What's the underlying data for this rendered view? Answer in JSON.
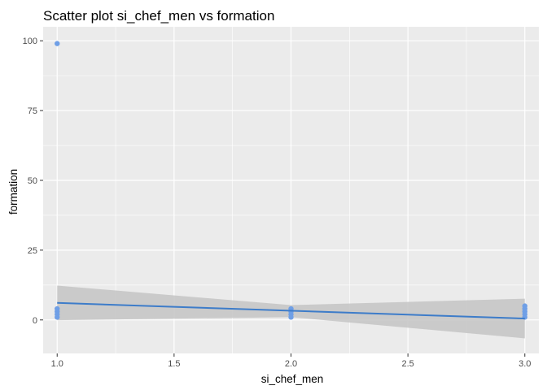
{
  "chart_data": {
    "type": "scatter",
    "title": "Scatter plot si_chef_men vs formation",
    "xlabel": "si_chef_men",
    "ylabel": "formation",
    "xlim": [
      0.94,
      3.06
    ],
    "ylim": [
      -12,
      105
    ],
    "xticks": [
      1.0,
      1.5,
      2.0,
      2.5,
      3.0
    ],
    "xtick_labels": [
      "1.0",
      "1.5",
      "2.0",
      "2.5",
      "3.0"
    ],
    "yticks": [
      0,
      25,
      50,
      75,
      100
    ],
    "ytick_labels": [
      "0",
      "25",
      "50",
      "75",
      "100"
    ],
    "grid": true,
    "points": [
      {
        "x": 1,
        "y": 99
      },
      {
        "x": 1,
        "y": 4
      },
      {
        "x": 1,
        "y": 3
      },
      {
        "x": 1,
        "y": 2
      },
      {
        "x": 1,
        "y": 1
      },
      {
        "x": 2,
        "y": 4
      },
      {
        "x": 2,
        "y": 3
      },
      {
        "x": 2,
        "y": 2
      },
      {
        "x": 2,
        "y": 1
      },
      {
        "x": 3,
        "y": 5
      },
      {
        "x": 3,
        "y": 4
      },
      {
        "x": 3,
        "y": 3
      },
      {
        "x": 3,
        "y": 2
      },
      {
        "x": 3,
        "y": 1
      }
    ],
    "fit_line": {
      "x": [
        1,
        3
      ],
      "y": [
        6.1,
        0.5
      ]
    },
    "confidence_band": {
      "x": [
        1,
        2,
        3
      ],
      "upper": [
        12.3,
        5.3,
        7.6
      ],
      "lower": [
        -0.1,
        1.0,
        -6.6
      ]
    },
    "colors": {
      "panel": "#ebebeb",
      "grid": "#ffffff",
      "points": "#6f9fe6",
      "line": "#3d7cc9",
      "band": "#c4c4c4"
    }
  }
}
